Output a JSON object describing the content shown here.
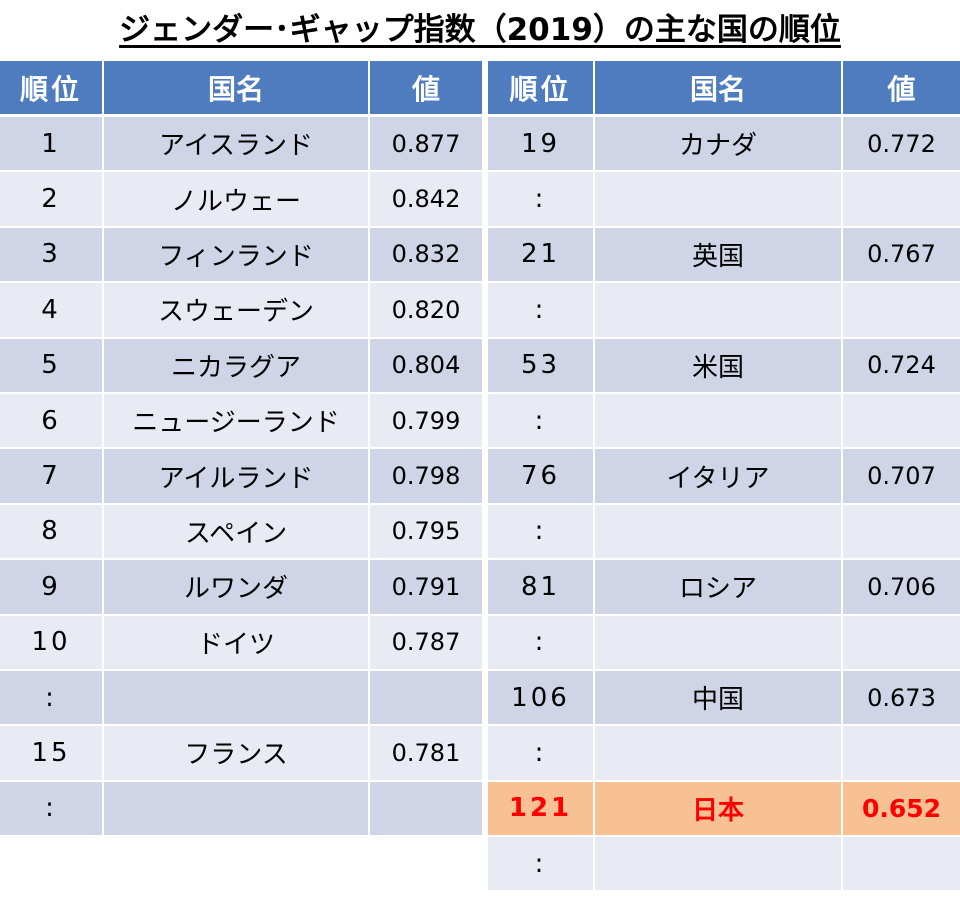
{
  "title": "ジェンダー･ギャップ指数（2019）の主な国の順位",
  "headers": {
    "rank": "順位",
    "country": "国名",
    "value": "値"
  },
  "left_rows": [
    {
      "rank": "1",
      "country": "アイスランド",
      "value": "0.877",
      "style": "dark"
    },
    {
      "rank": "2",
      "country": "ノルウェー",
      "value": "0.842",
      "style": "light"
    },
    {
      "rank": "3",
      "country": "フィンランド",
      "value": "0.832",
      "style": "dark"
    },
    {
      "rank": "4",
      "country": "スウェーデン",
      "value": "0.820",
      "style": "light"
    },
    {
      "rank": "5",
      "country": "ニカラグア",
      "value": "0.804",
      "style": "dark"
    },
    {
      "rank": "6",
      "country": "ニュージーランド",
      "value": "0.799",
      "style": "light"
    },
    {
      "rank": "7",
      "country": "アイルランド",
      "value": "0.798",
      "style": "dark"
    },
    {
      "rank": "8",
      "country": "スペイン",
      "value": "0.795",
      "style": "light"
    },
    {
      "rank": "9",
      "country": "ルワンダ",
      "value": "0.791",
      "style": "dark"
    },
    {
      "rank": "10",
      "country": "ドイツ",
      "value": "0.787",
      "style": "light"
    },
    {
      "rank": ":",
      "country": "",
      "value": "",
      "style": "dark"
    },
    {
      "rank": "15",
      "country": "フランス",
      "value": "0.781",
      "style": "light"
    },
    {
      "rank": ":",
      "country": "",
      "value": "",
      "style": "dark"
    }
  ],
  "right_rows": [
    {
      "rank": "19",
      "country": "カナダ",
      "value": "0.772",
      "style": "dark"
    },
    {
      "rank": ":",
      "country": "",
      "value": "",
      "style": "light"
    },
    {
      "rank": "21",
      "country": "英国",
      "value": "0.767",
      "style": "dark"
    },
    {
      "rank": ":",
      "country": "",
      "value": "",
      "style": "light"
    },
    {
      "rank": "53",
      "country": "米国",
      "value": "0.724",
      "style": "dark"
    },
    {
      "rank": ":",
      "country": "",
      "value": "",
      "style": "light"
    },
    {
      "rank": "76",
      "country": "イタリア",
      "value": "0.707",
      "style": "dark"
    },
    {
      "rank": ":",
      "country": "",
      "value": "",
      "style": "light"
    },
    {
      "rank": "81",
      "country": "ロシア",
      "value": "0.706",
      "style": "dark"
    },
    {
      "rank": ":",
      "country": "",
      "value": "",
      "style": "light"
    },
    {
      "rank": "106",
      "country": "中国",
      "value": "0.673",
      "style": "dark"
    },
    {
      "rank": ":",
      "country": "",
      "value": "",
      "style": "light"
    },
    {
      "rank": "121",
      "country": "日本",
      "value": "0.652",
      "style": "highlight"
    },
    {
      "rank": ":",
      "country": "",
      "value": "",
      "style": "light"
    }
  ],
  "colors": {
    "header_bg": "#4e7cbf",
    "row_dark": "#cfd5e7",
    "row_light": "#e8ebf4",
    "highlight_bg": "#f7c193",
    "highlight_text": "#ff0000"
  }
}
